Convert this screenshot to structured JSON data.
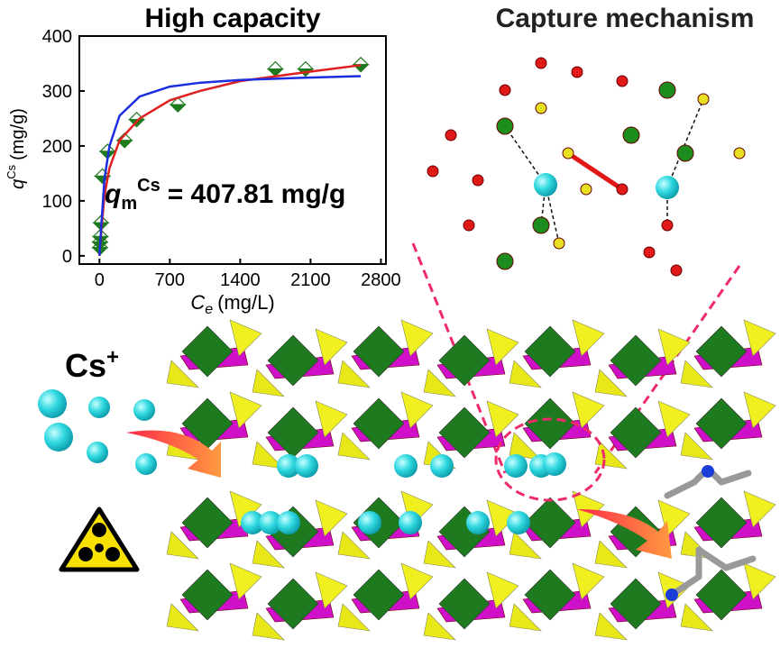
{
  "chart_data": {
    "type": "scatter",
    "title": "High capacity",
    "x_label": {
      "symbol": "C",
      "subscript": "e",
      "unit": "(mg/L)"
    },
    "y_label": {
      "symbol": "q",
      "superscript": "Cs",
      "unit": "(mg/g)"
    },
    "annotation": {
      "symbol": "q",
      "subscript": "m",
      "superscript": "Cs",
      "text": "= 407.81 mg/g"
    },
    "xlim": [
      -200,
      2850
    ],
    "ylim": [
      -15,
      400
    ],
    "xticks": [
      0,
      700,
      1400,
      2100,
      2800
    ],
    "yticks": [
      0,
      100,
      200,
      300,
      400
    ],
    "series": [
      {
        "kind": "points",
        "color": "#1e7a1e",
        "x": [
          5,
          5,
          10,
          15,
          30,
          80,
          250,
          370,
          780,
          1750,
          2050,
          2600
        ],
        "values": [
          15,
          25,
          35,
          60,
          145,
          190,
          210,
          248,
          275,
          340,
          340,
          348
        ]
      },
      {
        "kind": "line",
        "color": "#e02020",
        "x": [
          0,
          20,
          50,
          100,
          200,
          400,
          700,
          1000,
          1400,
          2000,
          2600
        ],
        "values": [
          0,
          50,
          110,
          160,
          210,
          250,
          283,
          300,
          318,
          333,
          347
        ]
      },
      {
        "kind": "line",
        "color": "#1a2ee0",
        "x": [
          0,
          20,
          50,
          100,
          200,
          400,
          700,
          1000,
          1400,
          2000,
          2600
        ],
        "values": [
          0,
          60,
          140,
          200,
          255,
          290,
          308,
          315,
          320,
          324,
          327
        ]
      }
    ]
  },
  "illustration": {
    "title": "Capture mechanism",
    "ion": "Cs",
    "ion_charge": "+"
  }
}
